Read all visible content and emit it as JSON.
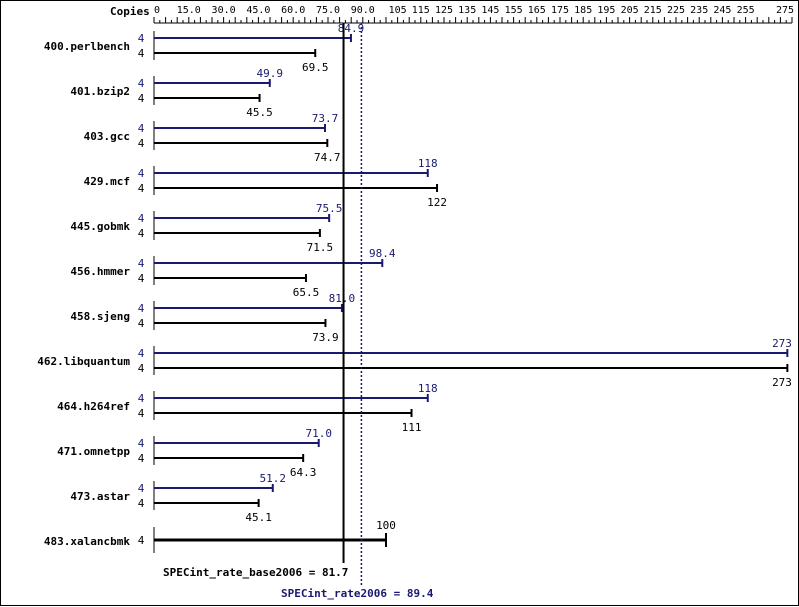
{
  "chart_data": {
    "type": "bar",
    "orientation": "horizontal",
    "axis_header": "Copies",
    "xlim": [
      0,
      275
    ],
    "x_ticks": [
      "0",
      "15.0",
      "30.0",
      "45.0",
      "60.0",
      "75.0",
      "90.0",
      "105",
      "115",
      "125",
      "135",
      "145",
      "155",
      "165",
      "175",
      "185",
      "195",
      "205",
      "215",
      "225",
      "235",
      "245",
      "255",
      "275"
    ],
    "x_tick_values": [
      0,
      15,
      30,
      45,
      60,
      75,
      90,
      105,
      115,
      125,
      135,
      145,
      155,
      165,
      175,
      185,
      195,
      205,
      215,
      225,
      235,
      245,
      255,
      275
    ],
    "benchmarks": [
      {
        "name": "400.perlbench",
        "peak": {
          "copies": "4",
          "value": 84.9,
          "label": "84.9"
        },
        "base": {
          "copies": "4",
          "value": 69.5,
          "label": "69.5"
        }
      },
      {
        "name": "401.bzip2",
        "peak": {
          "copies": "4",
          "value": 49.9,
          "label": "49.9"
        },
        "base": {
          "copies": "4",
          "value": 45.5,
          "label": "45.5"
        }
      },
      {
        "name": "403.gcc",
        "peak": {
          "copies": "4",
          "value": 73.7,
          "label": "73.7"
        },
        "base": {
          "copies": "4",
          "value": 74.7,
          "label": "74.7"
        }
      },
      {
        "name": "429.mcf",
        "peak": {
          "copies": "4",
          "value": 118,
          "label": "118"
        },
        "base": {
          "copies": "4",
          "value": 122,
          "label": "122"
        }
      },
      {
        "name": "445.gobmk",
        "peak": {
          "copies": "4",
          "value": 75.5,
          "label": "75.5"
        },
        "base": {
          "copies": "4",
          "value": 71.5,
          "label": "71.5"
        }
      },
      {
        "name": "456.hmmer",
        "peak": {
          "copies": "4",
          "value": 98.4,
          "label": "98.4"
        },
        "base": {
          "copies": "4",
          "value": 65.5,
          "label": "65.5"
        }
      },
      {
        "name": "458.sjeng",
        "peak": {
          "copies": "4",
          "value": 81.0,
          "label": "81.0"
        },
        "base": {
          "copies": "4",
          "value": 73.9,
          "label": "73.9"
        }
      },
      {
        "name": "462.libquantum",
        "peak": {
          "copies": "4",
          "value": 273,
          "label": "273"
        },
        "base": {
          "copies": "4",
          "value": 273,
          "label": "273"
        }
      },
      {
        "name": "464.h264ref",
        "peak": {
          "copies": "4",
          "value": 118,
          "label": "118"
        },
        "base": {
          "copies": "4",
          "value": 111,
          "label": "111"
        }
      },
      {
        "name": "471.omnetpp",
        "peak": {
          "copies": "4",
          "value": 71.0,
          "label": "71.0"
        },
        "base": {
          "copies": "4",
          "value": 64.3,
          "label": "64.3"
        }
      },
      {
        "name": "473.astar",
        "peak": {
          "copies": "4",
          "value": 51.2,
          "label": "51.2"
        },
        "base": {
          "copies": "4",
          "value": 45.1,
          "label": "45.1"
        }
      },
      {
        "name": "483.xalancbmk",
        "combined": {
          "copies": "4",
          "value": 100,
          "label": "100"
        }
      }
    ],
    "base_summary": {
      "label": "SPECint_rate_base2006 = 81.7",
      "value": 81.7
    },
    "peak_summary": {
      "label": "SPECint_rate2006 = 89.4",
      "value": 89.4
    },
    "colors": {
      "base": "#000000",
      "peak": "#191970"
    }
  }
}
